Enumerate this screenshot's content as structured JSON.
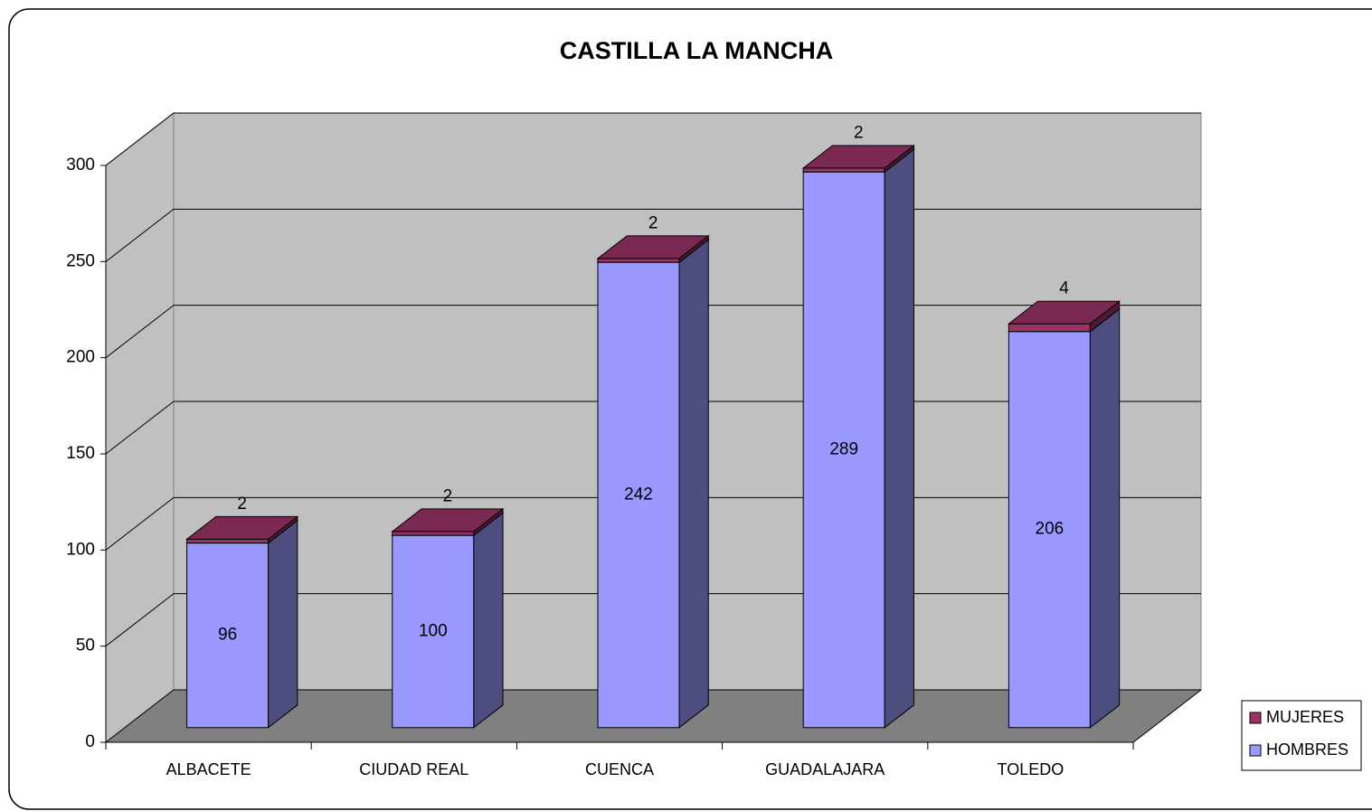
{
  "chart_data": {
    "type": "bar",
    "stacked": true,
    "three_d": true,
    "title": "CASTILLA LA MANCHA",
    "categories": [
      "ALBACETE",
      "CIUDAD REAL",
      "CUENCA",
      "GUADALAJARA",
      "TOLEDO"
    ],
    "series": [
      {
        "name": "HOMBRES",
        "color": "#9999ff",
        "values": [
          96,
          100,
          242,
          289,
          206
        ]
      },
      {
        "name": "MUJERES",
        "color": "#993366",
        "values": [
          2,
          2,
          2,
          2,
          4
        ]
      }
    ],
    "ylim": [
      0,
      300
    ],
    "yticks": [
      0,
      50,
      100,
      150,
      200,
      250,
      300
    ],
    "grid": true,
    "legend": "right"
  }
}
